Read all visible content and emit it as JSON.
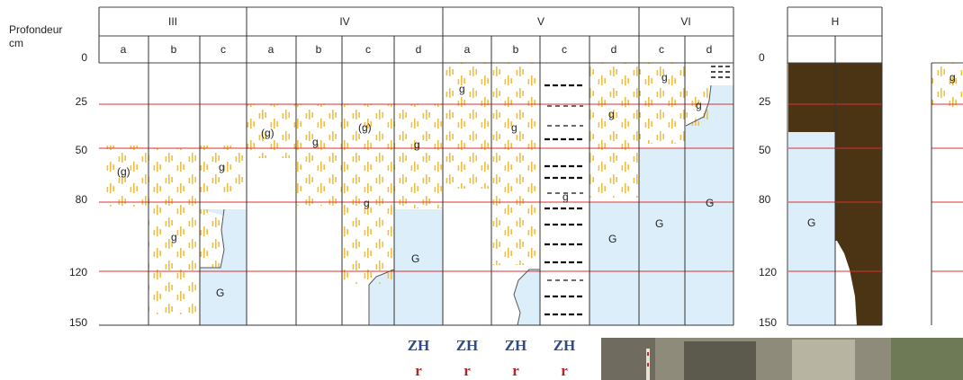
{
  "axis": {
    "title_line1": "Profondeur",
    "title_line2": "cm",
    "ticks": [
      "0",
      "25",
      "50",
      "80",
      "120",
      "150"
    ],
    "h_ticks": [
      "0",
      "25",
      "50",
      "80",
      "120",
      "150"
    ]
  },
  "groups": [
    "III",
    "IV",
    "V",
    "VI"
  ],
  "columns": [
    "a",
    "b",
    "c",
    "a",
    "b",
    "c",
    "d",
    "a",
    "b",
    "c",
    "d",
    "c",
    "d"
  ],
  "h_group": "H",
  "symbols": {
    "g": "g",
    "g_paren": "(g)",
    "G": "G"
  },
  "zh_label": "ZH",
  "r_label": "r",
  "colors": {
    "gley_blue": "#dceefa",
    "mottle_yellow": "#f0bf45",
    "red_line": "#dd3030",
    "peat_brown": "#4a3414",
    "zh_blue": "#2f4a8a",
    "r_red": "#b32626"
  }
}
